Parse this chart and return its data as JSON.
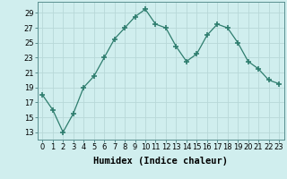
{
  "x": [
    0,
    1,
    2,
    3,
    4,
    5,
    6,
    7,
    8,
    9,
    10,
    11,
    12,
    13,
    14,
    15,
    16,
    17,
    18,
    19,
    20,
    21,
    22,
    23
  ],
  "y": [
    18,
    16,
    13,
    15.5,
    19,
    20.5,
    23,
    25.5,
    27,
    28.5,
    29.5,
    27.5,
    27,
    24.5,
    22.5,
    23.5,
    26,
    27.5,
    27,
    25,
    22.5,
    21.5,
    20,
    19.5
  ],
  "line_color": "#2e7d6e",
  "marker": "+",
  "marker_size": 4,
  "bg_color": "#d0eeee",
  "grid_color": "#b8d8d8",
  "xlabel": "Humidex (Indice chaleur)",
  "xlim": [
    -0.5,
    23.5
  ],
  "ylim": [
    12,
    30.5
  ],
  "yticks": [
    13,
    15,
    17,
    19,
    21,
    23,
    25,
    27,
    29
  ],
  "xticks": [
    0,
    1,
    2,
    3,
    4,
    5,
    6,
    7,
    8,
    9,
    10,
    11,
    12,
    13,
    14,
    15,
    16,
    17,
    18,
    19,
    20,
    21,
    22,
    23
  ],
  "xlabel_fontsize": 7.5,
  "tick_fontsize": 6
}
